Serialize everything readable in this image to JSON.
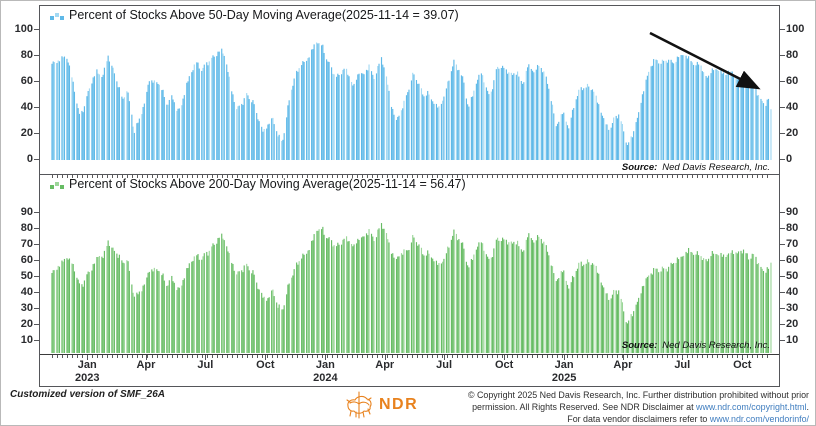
{
  "xaxis": {
    "labels": [
      {
        "text": "Jan",
        "year": "2023",
        "date": "2023-01-01"
      },
      {
        "text": "Apr",
        "date": "2023-04-01"
      },
      {
        "text": "Jul",
        "date": "2023-07-01"
      },
      {
        "text": "Oct",
        "date": "2023-10-01"
      },
      {
        "text": "Jan",
        "year": "2024",
        "date": "2024-01-01"
      },
      {
        "text": "Apr",
        "date": "2024-04-01"
      },
      {
        "text": "Jul",
        "date": "2024-07-01"
      },
      {
        "text": "Oct",
        "date": "2024-10-01"
      },
      {
        "text": "Jan",
        "year": "2025",
        "date": "2025-01-01"
      },
      {
        "text": "Apr",
        "date": "2025-04-01"
      },
      {
        "text": "Jul",
        "date": "2025-07-01"
      },
      {
        "text": "Oct",
        "date": "2025-10-01"
      }
    ]
  },
  "footer": {
    "custom_note": "Customized version of SMF_26A",
    "logo_text": "NDR",
    "logo_color": "#e8821e",
    "copyright_line1": "© Copyright 2025 Ned Davis Research, Inc. Further distribution prohibited without prior",
    "copyright_line2_pre": "permission. All Rights Reserved. See NDR Disclaimer at ",
    "copyright_link1": "www.ndr.com/copyright.html",
    "copyright_line2_post": ".",
    "copyright_line3_pre": "For data vendor disclaimers refer to ",
    "copyright_link2": "www.ndr.com/vendorinfo/"
  },
  "chart_data": [
    {
      "type": "bar",
      "title": "Percent of Stocks Above 50-Day Moving Average(2025-11-14 = 39.07)",
      "source_label": "Source:",
      "source": "Ned Davis Research, Inc.",
      "bar_color": "#5fb9e8",
      "bar_color_light": "#a3d9f3",
      "ylim": [
        0,
        105
      ],
      "yticks": [
        0,
        20,
        40,
        60,
        80,
        100
      ],
      "x_range": [
        "2022-11-08",
        "2025-11-14"
      ],
      "last_date": "2025-11-14",
      "last_value": 39.07,
      "annotation": "downtrend-arrow",
      "keypoints": [
        [
          "2022-11-10",
          74
        ],
        [
          "2022-11-18",
          76
        ],
        [
          "2022-11-25",
          80
        ],
        [
          "2022-12-02",
          78
        ],
        [
          "2022-12-12",
          55
        ],
        [
          "2022-12-20",
          35
        ],
        [
          "2022-12-29",
          42
        ],
        [
          "2023-01-06",
          58
        ],
        [
          "2023-01-16",
          70
        ],
        [
          "2023-01-24",
          62
        ],
        [
          "2023-02-02",
          80
        ],
        [
          "2023-02-09",
          72
        ],
        [
          "2023-02-17",
          58
        ],
        [
          "2023-02-24",
          45
        ],
        [
          "2023-03-03",
          55
        ],
        [
          "2023-03-10",
          38
        ],
        [
          "2023-03-14",
          20
        ],
        [
          "2023-03-24",
          33
        ],
        [
          "2023-03-31",
          48
        ],
        [
          "2023-04-06",
          62
        ],
        [
          "2023-04-14",
          58
        ],
        [
          "2023-04-21",
          60
        ],
        [
          "2023-04-28",
          52
        ],
        [
          "2023-05-04",
          42
        ],
        [
          "2023-05-12",
          48
        ],
        [
          "2023-05-19",
          38
        ],
        [
          "2023-05-26",
          44
        ],
        [
          "2023-06-02",
          56
        ],
        [
          "2023-06-13",
          72
        ],
        [
          "2023-06-16",
          78
        ],
        [
          "2023-06-26",
          68
        ],
        [
          "2023-07-03",
          74
        ],
        [
          "2023-07-13",
          80
        ],
        [
          "2023-07-27",
          84
        ],
        [
          "2023-08-02",
          76
        ],
        [
          "2023-08-10",
          55
        ],
        [
          "2023-08-18",
          38
        ],
        [
          "2023-08-29",
          46
        ],
        [
          "2023-09-01",
          52
        ],
        [
          "2023-09-14",
          42
        ],
        [
          "2023-09-22",
          30
        ],
        [
          "2023-09-27",
          22
        ],
        [
          "2023-10-05",
          26
        ],
        [
          "2023-10-12",
          33
        ],
        [
          "2023-10-20",
          20
        ],
        [
          "2023-10-27",
          13
        ],
        [
          "2023-11-02",
          30
        ],
        [
          "2023-11-08",
          52
        ],
        [
          "2023-11-15",
          64
        ],
        [
          "2023-11-24",
          72
        ],
        [
          "2023-12-01",
          76
        ],
        [
          "2023-12-12",
          85
        ],
        [
          "2023-12-19",
          90
        ],
        [
          "2023-12-28",
          88
        ],
        [
          "2024-01-05",
          76
        ],
        [
          "2024-01-17",
          62
        ],
        [
          "2024-01-24",
          68
        ],
        [
          "2024-01-31",
          72
        ],
        [
          "2024-02-07",
          62
        ],
        [
          "2024-02-13",
          56
        ],
        [
          "2024-02-22",
          70
        ],
        [
          "2024-02-29",
          64
        ],
        [
          "2024-03-08",
          72
        ],
        [
          "2024-03-15",
          64
        ],
        [
          "2024-03-27",
          78
        ],
        [
          "2024-04-04",
          62
        ],
        [
          "2024-04-12",
          42
        ],
        [
          "2024-04-19",
          30
        ],
        [
          "2024-04-26",
          36
        ],
        [
          "2024-05-07",
          55
        ],
        [
          "2024-05-15",
          66
        ],
        [
          "2024-05-23",
          58
        ],
        [
          "2024-05-31",
          50
        ],
        [
          "2024-06-06",
          52
        ],
        [
          "2024-06-14",
          44
        ],
        [
          "2024-06-24",
          40
        ],
        [
          "2024-06-28",
          46
        ],
        [
          "2024-07-05",
          55
        ],
        [
          "2024-07-16",
          76
        ],
        [
          "2024-07-24",
          70
        ],
        [
          "2024-08-01",
          58
        ],
        [
          "2024-08-07",
          40
        ],
        [
          "2024-08-16",
          54
        ],
        [
          "2024-08-26",
          68
        ],
        [
          "2024-09-04",
          56
        ],
        [
          "2024-09-09",
          48
        ],
        [
          "2024-09-19",
          68
        ],
        [
          "2024-09-26",
          73
        ],
        [
          "2024-10-04",
          70
        ],
        [
          "2024-10-14",
          64
        ],
        [
          "2024-10-22",
          68
        ],
        [
          "2024-10-30",
          58
        ],
        [
          "2024-11-06",
          72
        ],
        [
          "2024-11-13",
          68
        ],
        [
          "2024-11-25",
          74
        ],
        [
          "2024-12-03",
          64
        ],
        [
          "2024-12-12",
          48
        ],
        [
          "2024-12-20",
          27
        ],
        [
          "2024-12-30",
          35
        ],
        [
          "2025-01-08",
          26
        ],
        [
          "2025-01-17",
          44
        ],
        [
          "2025-01-24",
          52
        ],
        [
          "2025-01-31",
          56
        ],
        [
          "2025-02-07",
          58
        ],
        [
          "2025-02-14",
          54
        ],
        [
          "2025-02-21",
          44
        ],
        [
          "2025-02-28",
          36
        ],
        [
          "2025-03-07",
          28
        ],
        [
          "2025-03-13",
          22
        ],
        [
          "2025-03-19",
          32
        ],
        [
          "2025-03-26",
          36
        ],
        [
          "2025-04-03",
          22
        ],
        [
          "2025-04-08",
          10
        ],
        [
          "2025-04-15",
          18
        ],
        [
          "2025-04-24",
          34
        ],
        [
          "2025-05-02",
          52
        ],
        [
          "2025-05-12",
          70
        ],
        [
          "2025-05-19",
          78
        ],
        [
          "2025-05-30",
          74
        ],
        [
          "2025-06-09",
          78
        ],
        [
          "2025-06-18",
          74
        ],
        [
          "2025-06-27",
          80
        ],
        [
          "2025-07-03",
          82
        ],
        [
          "2025-07-11",
          78
        ],
        [
          "2025-07-21",
          72
        ],
        [
          "2025-07-29",
          76
        ],
        [
          "2025-08-05",
          62
        ],
        [
          "2025-08-13",
          66
        ],
        [
          "2025-08-22",
          72
        ],
        [
          "2025-08-29",
          68
        ],
        [
          "2025-09-05",
          64
        ],
        [
          "2025-09-12",
          70
        ],
        [
          "2025-09-19",
          66
        ],
        [
          "2025-09-26",
          60
        ],
        [
          "2025-10-03",
          64
        ],
        [
          "2025-10-10",
          58
        ],
        [
          "2025-10-17",
          62
        ],
        [
          "2025-10-24",
          50
        ],
        [
          "2025-10-31",
          45
        ],
        [
          "2025-11-05",
          42
        ],
        [
          "2025-11-10",
          50
        ],
        [
          "2025-11-14",
          39.07
        ]
      ]
    },
    {
      "type": "bar",
      "title": "Percent of Stocks Above 200-Day Moving Average(2025-11-14 = 56.47)",
      "source_label": "Source:",
      "source": "Ned Davis Research, Inc.",
      "bar_color": "#67bc64",
      "bar_color_light": "#9cd699",
      "ylim": [
        0,
        95
      ],
      "yticks": [
        10,
        20,
        30,
        40,
        50,
        60,
        70,
        80,
        90
      ],
      "x_range": [
        "2022-11-08",
        "2025-11-14"
      ],
      "last_date": "2025-11-14",
      "last_value": 56.47,
      "annotation": null,
      "keypoints": [
        [
          "2022-11-10",
          50
        ],
        [
          "2022-11-18",
          54
        ],
        [
          "2022-11-25",
          58
        ],
        [
          "2022-12-02",
          60
        ],
        [
          "2022-12-13",
          52
        ],
        [
          "2022-12-21",
          42
        ],
        [
          "2022-12-30",
          46
        ],
        [
          "2023-01-09",
          54
        ],
        [
          "2023-01-18",
          62
        ],
        [
          "2023-01-25",
          58
        ],
        [
          "2023-02-02",
          70
        ],
        [
          "2023-02-09",
          66
        ],
        [
          "2023-02-16",
          62
        ],
        [
          "2023-02-24",
          55
        ],
        [
          "2023-03-03",
          60
        ],
        [
          "2023-03-10",
          45
        ],
        [
          "2023-03-15",
          33
        ],
        [
          "2023-03-24",
          38
        ],
        [
          "2023-03-31",
          46
        ],
        [
          "2023-04-06",
          52
        ],
        [
          "2023-04-14",
          50
        ],
        [
          "2023-04-21",
          53
        ],
        [
          "2023-04-28",
          48
        ],
        [
          "2023-05-04",
          42
        ],
        [
          "2023-05-12",
          46
        ],
        [
          "2023-05-19",
          40
        ],
        [
          "2023-05-26",
          44
        ],
        [
          "2023-06-02",
          50
        ],
        [
          "2023-06-13",
          60
        ],
        [
          "2023-06-16",
          63
        ],
        [
          "2023-06-26",
          58
        ],
        [
          "2023-07-03",
          62
        ],
        [
          "2023-07-13",
          68
        ],
        [
          "2023-07-27",
          73
        ],
        [
          "2023-08-02",
          68
        ],
        [
          "2023-08-10",
          58
        ],
        [
          "2023-08-18",
          48
        ],
        [
          "2023-08-29",
          54
        ],
        [
          "2023-09-01",
          56
        ],
        [
          "2023-09-14",
          48
        ],
        [
          "2023-09-22",
          40
        ],
        [
          "2023-09-27",
          35
        ],
        [
          "2023-10-05",
          33
        ],
        [
          "2023-10-12",
          40
        ],
        [
          "2023-10-20",
          30
        ],
        [
          "2023-10-27",
          26
        ],
        [
          "2023-11-02",
          35
        ],
        [
          "2023-11-08",
          47
        ],
        [
          "2023-11-15",
          53
        ],
        [
          "2023-11-24",
          58
        ],
        [
          "2023-12-01",
          62
        ],
        [
          "2023-12-12",
          70
        ],
        [
          "2023-12-19",
          76
        ],
        [
          "2023-12-28",
          78
        ],
        [
          "2024-01-05",
          72
        ],
        [
          "2024-01-17",
          65
        ],
        [
          "2024-01-24",
          70
        ],
        [
          "2024-01-31",
          73
        ],
        [
          "2024-02-07",
          68
        ],
        [
          "2024-02-13",
          66
        ],
        [
          "2024-02-22",
          74
        ],
        [
          "2024-02-29",
          71
        ],
        [
          "2024-03-08",
          76
        ],
        [
          "2024-03-15",
          72
        ],
        [
          "2024-03-27",
          80
        ],
        [
          "2024-04-04",
          73
        ],
        [
          "2024-04-12",
          64
        ],
        [
          "2024-04-19",
          58
        ],
        [
          "2024-04-26",
          61
        ],
        [
          "2024-05-07",
          66
        ],
        [
          "2024-05-15",
          72
        ],
        [
          "2024-05-23",
          67
        ],
        [
          "2024-05-31",
          62
        ],
        [
          "2024-06-06",
          63
        ],
        [
          "2024-06-14",
          58
        ],
        [
          "2024-06-24",
          55
        ],
        [
          "2024-06-28",
          58
        ],
        [
          "2024-07-05",
          62
        ],
        [
          "2024-07-16",
          76
        ],
        [
          "2024-07-24",
          72
        ],
        [
          "2024-08-01",
          64
        ],
        [
          "2024-08-07",
          53
        ],
        [
          "2024-08-16",
          62
        ],
        [
          "2024-08-26",
          70
        ],
        [
          "2024-09-04",
          62
        ],
        [
          "2024-09-09",
          57
        ],
        [
          "2024-09-19",
          69
        ],
        [
          "2024-09-26",
          72
        ],
        [
          "2024-10-04",
          71
        ],
        [
          "2024-10-14",
          67
        ],
        [
          "2024-10-22",
          70
        ],
        [
          "2024-10-30",
          63
        ],
        [
          "2024-11-06",
          73
        ],
        [
          "2024-11-13",
          70
        ],
        [
          "2024-11-25",
          74
        ],
        [
          "2024-12-03",
          66
        ],
        [
          "2024-12-12",
          57
        ],
        [
          "2024-12-20",
          46
        ],
        [
          "2024-12-30",
          50
        ],
        [
          "2025-01-08",
          42
        ],
        [
          "2025-01-17",
          50
        ],
        [
          "2025-01-24",
          54
        ],
        [
          "2025-01-31",
          56
        ],
        [
          "2025-02-07",
          58
        ],
        [
          "2025-02-14",
          56
        ],
        [
          "2025-02-21",
          50
        ],
        [
          "2025-02-28",
          44
        ],
        [
          "2025-03-07",
          38
        ],
        [
          "2025-03-13",
          32
        ],
        [
          "2025-03-19",
          38
        ],
        [
          "2025-03-26",
          40
        ],
        [
          "2025-04-03",
          26
        ],
        [
          "2025-04-08",
          17
        ],
        [
          "2025-04-15",
          24
        ],
        [
          "2025-04-24",
          33
        ],
        [
          "2025-05-02",
          42
        ],
        [
          "2025-05-12",
          49
        ],
        [
          "2025-05-19",
          53
        ],
        [
          "2025-05-30",
          51
        ],
        [
          "2025-06-09",
          54
        ],
        [
          "2025-06-18",
          56
        ],
        [
          "2025-06-27",
          59
        ],
        [
          "2025-07-03",
          62
        ],
        [
          "2025-07-11",
          64
        ],
        [
          "2025-07-21",
          61
        ],
        [
          "2025-07-29",
          63
        ],
        [
          "2025-08-05",
          56
        ],
        [
          "2025-08-13",
          60
        ],
        [
          "2025-08-22",
          64
        ],
        [
          "2025-08-29",
          61
        ],
        [
          "2025-09-05",
          59
        ],
        [
          "2025-09-12",
          63
        ],
        [
          "2025-09-19",
          65
        ],
        [
          "2025-09-26",
          61
        ],
        [
          "2025-10-03",
          64
        ],
        [
          "2025-10-10",
          60
        ],
        [
          "2025-10-17",
          63
        ],
        [
          "2025-10-24",
          56
        ],
        [
          "2025-10-31",
          52
        ],
        [
          "2025-11-05",
          50
        ],
        [
          "2025-11-07",
          54
        ],
        [
          "2025-11-14",
          56.47
        ]
      ]
    }
  ]
}
